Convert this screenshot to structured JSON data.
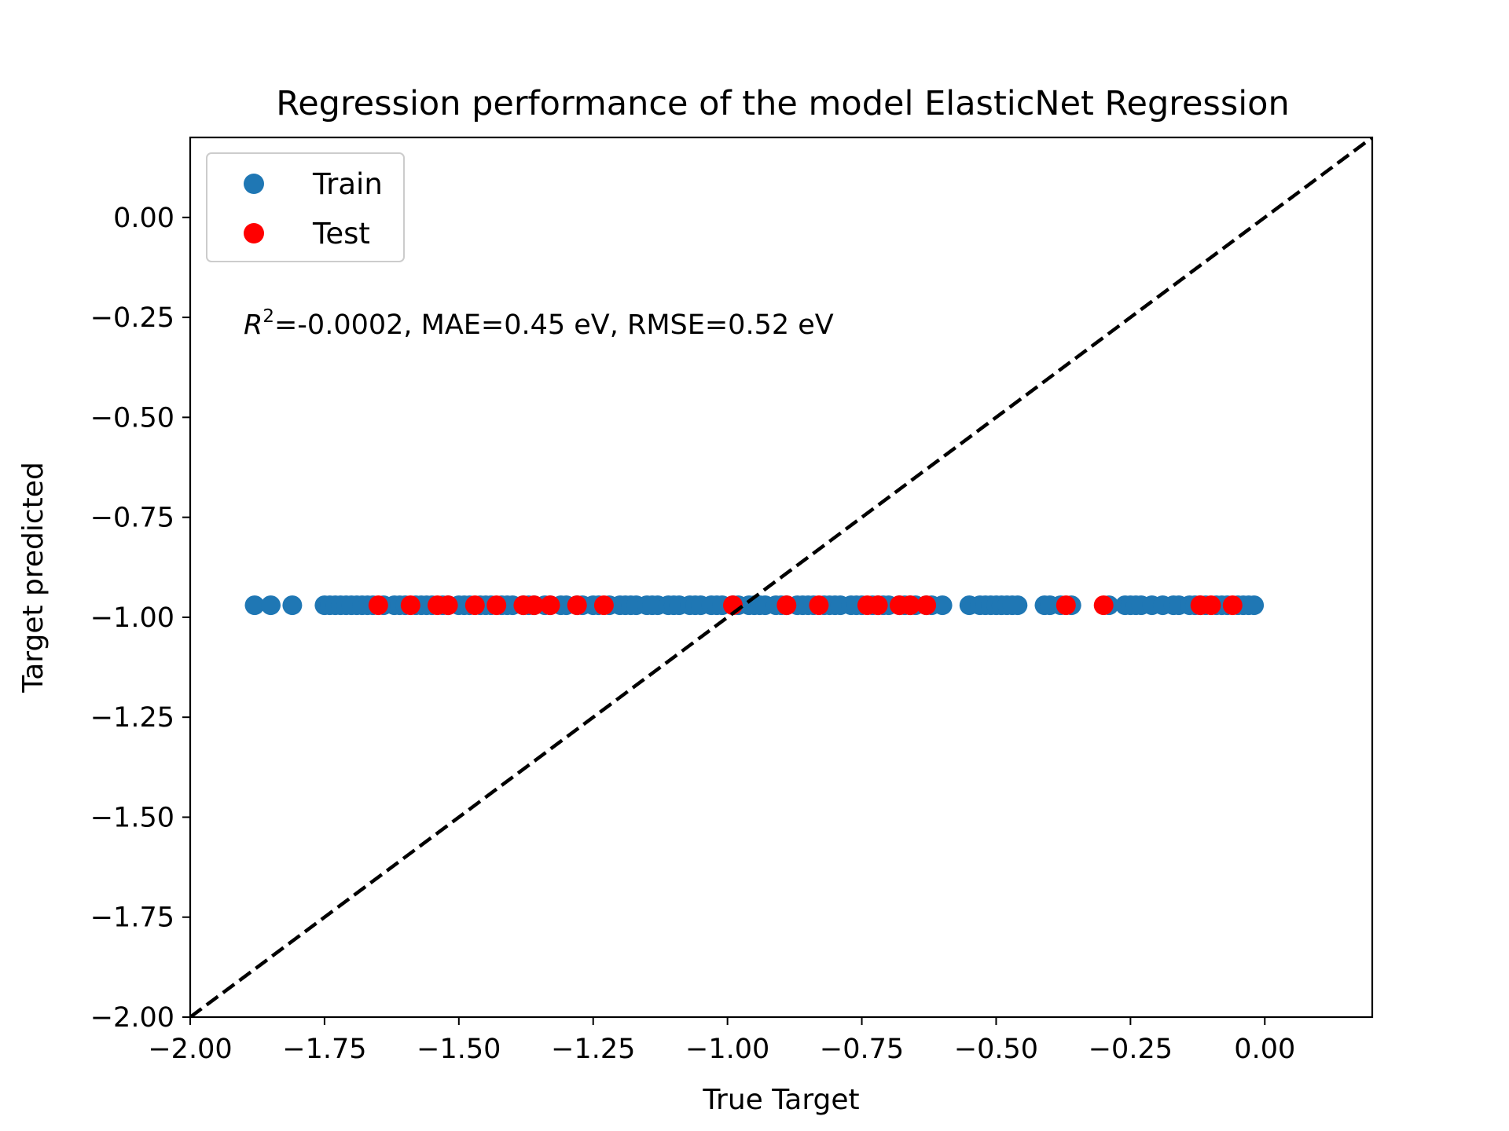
{
  "chart_data": {
    "type": "scatter",
    "title": "Regression performance of the model ElasticNet Regression",
    "xlabel": "True Target",
    "ylabel": "Target predicted",
    "xlim": [
      -2.0,
      0.2
    ],
    "ylim": [
      -2.0,
      0.2
    ],
    "x_ticks": [
      "−2.00",
      "−1.75",
      "−1.50",
      "−1.25",
      "−1.00",
      "−0.75",
      "−0.50",
      "−0.25",
      "0.00"
    ],
    "x_tick_values": [
      -2.0,
      -1.75,
      -1.5,
      -1.25,
      -1.0,
      -0.75,
      -0.5,
      -0.25,
      0.0
    ],
    "y_ticks": [
      "0.00",
      "−0.25",
      "−0.50",
      "−0.75",
      "−1.00",
      "−1.25",
      "−1.50",
      "−1.75",
      "−2.00"
    ],
    "y_tick_values": [
      0.0,
      -0.25,
      -0.5,
      -0.75,
      -1.0,
      -1.25,
      -1.5,
      -1.75,
      -2.0
    ],
    "grid": false,
    "legend_position": "top-left",
    "annotation": {
      "r_symbol": "R",
      "r_superscript": "2",
      "text": "=-0.0002, MAE=0.45 eV, RMSE=0.52 eV"
    },
    "reference_line": {
      "name": "y = x",
      "style": "dashed",
      "color": "#000000"
    },
    "series": [
      {
        "name": "Train",
        "color": "#1f77b4",
        "x": [
          -1.88,
          -1.85,
          -1.81,
          -1.75,
          -1.74,
          -1.73,
          -1.72,
          -1.71,
          -1.7,
          -1.69,
          -1.68,
          -1.67,
          -1.66,
          -1.64,
          -1.62,
          -1.61,
          -1.6,
          -1.58,
          -1.57,
          -1.56,
          -1.55,
          -1.53,
          -1.52,
          -1.5,
          -1.49,
          -1.48,
          -1.46,
          -1.45,
          -1.44,
          -1.42,
          -1.41,
          -1.4,
          -1.38,
          -1.37,
          -1.36,
          -1.34,
          -1.33,
          -1.31,
          -1.3,
          -1.28,
          -1.27,
          -1.25,
          -1.24,
          -1.22,
          -1.2,
          -1.19,
          -1.18,
          -1.17,
          -1.15,
          -1.14,
          -1.13,
          -1.11,
          -1.1,
          -1.09,
          -1.07,
          -1.06,
          -1.05,
          -1.03,
          -1.02,
          -1.01,
          -0.99,
          -0.98,
          -0.96,
          -0.95,
          -0.94,
          -0.93,
          -0.91,
          -0.9,
          -0.89,
          -0.87,
          -0.86,
          -0.85,
          -0.84,
          -0.82,
          -0.81,
          -0.8,
          -0.79,
          -0.77,
          -0.76,
          -0.75,
          -0.73,
          -0.72,
          -0.71,
          -0.7,
          -0.68,
          -0.67,
          -0.66,
          -0.65,
          -0.63,
          -0.62,
          -0.6,
          -0.55,
          -0.53,
          -0.52,
          -0.51,
          -0.5,
          -0.49,
          -0.48,
          -0.47,
          -0.46,
          -0.41,
          -0.4,
          -0.38,
          -0.36,
          -0.29,
          -0.26,
          -0.25,
          -0.24,
          -0.23,
          -0.21,
          -0.19,
          -0.17,
          -0.16,
          -0.14,
          -0.13,
          -0.12,
          -0.11,
          -0.09,
          -0.08,
          -0.07,
          -0.05,
          -0.04,
          -0.03,
          -0.02
        ],
        "y": [
          -0.97,
          -0.97,
          -0.97,
          -0.97,
          -0.97,
          -0.97,
          -0.97,
          -0.97,
          -0.97,
          -0.97,
          -0.97,
          -0.97,
          -0.97,
          -0.97,
          -0.97,
          -0.97,
          -0.97,
          -0.97,
          -0.97,
          -0.97,
          -0.97,
          -0.97,
          -0.97,
          -0.97,
          -0.97,
          -0.97,
          -0.97,
          -0.97,
          -0.97,
          -0.97,
          -0.97,
          -0.97,
          -0.97,
          -0.97,
          -0.97,
          -0.97,
          -0.97,
          -0.97,
          -0.97,
          -0.97,
          -0.97,
          -0.97,
          -0.97,
          -0.97,
          -0.97,
          -0.97,
          -0.97,
          -0.97,
          -0.97,
          -0.97,
          -0.97,
          -0.97,
          -0.97,
          -0.97,
          -0.97,
          -0.97,
          -0.97,
          -0.97,
          -0.97,
          -0.97,
          -0.97,
          -0.97,
          -0.97,
          -0.97,
          -0.97,
          -0.97,
          -0.97,
          -0.97,
          -0.97,
          -0.97,
          -0.97,
          -0.97,
          -0.97,
          -0.97,
          -0.97,
          -0.97,
          -0.97,
          -0.97,
          -0.97,
          -0.97,
          -0.97,
          -0.97,
          -0.97,
          -0.97,
          -0.97,
          -0.97,
          -0.97,
          -0.97,
          -0.97,
          -0.97,
          -0.97,
          -0.97,
          -0.97,
          -0.97,
          -0.97,
          -0.97,
          -0.97,
          -0.97,
          -0.97,
          -0.97,
          -0.97,
          -0.97,
          -0.97,
          -0.97,
          -0.97,
          -0.97,
          -0.97,
          -0.97,
          -0.97,
          -0.97,
          -0.97,
          -0.97,
          -0.97,
          -0.97,
          -0.97,
          -0.97,
          -0.97,
          -0.97,
          -0.97,
          -0.97,
          -0.97,
          -0.97,
          -0.97,
          -0.97
        ]
      },
      {
        "name": "Test",
        "color": "#ff0000",
        "x": [
          -1.65,
          -1.59,
          -1.54,
          -1.52,
          -1.47,
          -1.43,
          -1.38,
          -1.36,
          -1.33,
          -1.28,
          -1.23,
          -0.99,
          -0.89,
          -0.83,
          -0.74,
          -0.72,
          -0.68,
          -0.66,
          -0.63,
          -0.37,
          -0.3,
          -0.12,
          -0.1,
          -0.06
        ],
        "y": [
          -0.97,
          -0.97,
          -0.97,
          -0.97,
          -0.97,
          -0.97,
          -0.97,
          -0.97,
          -0.97,
          -0.97,
          -0.97,
          -0.97,
          -0.97,
          -0.97,
          -0.97,
          -0.97,
          -0.97,
          -0.97,
          -0.97,
          -0.97,
          -0.97,
          -0.97,
          -0.97,
          -0.97
        ]
      }
    ]
  }
}
